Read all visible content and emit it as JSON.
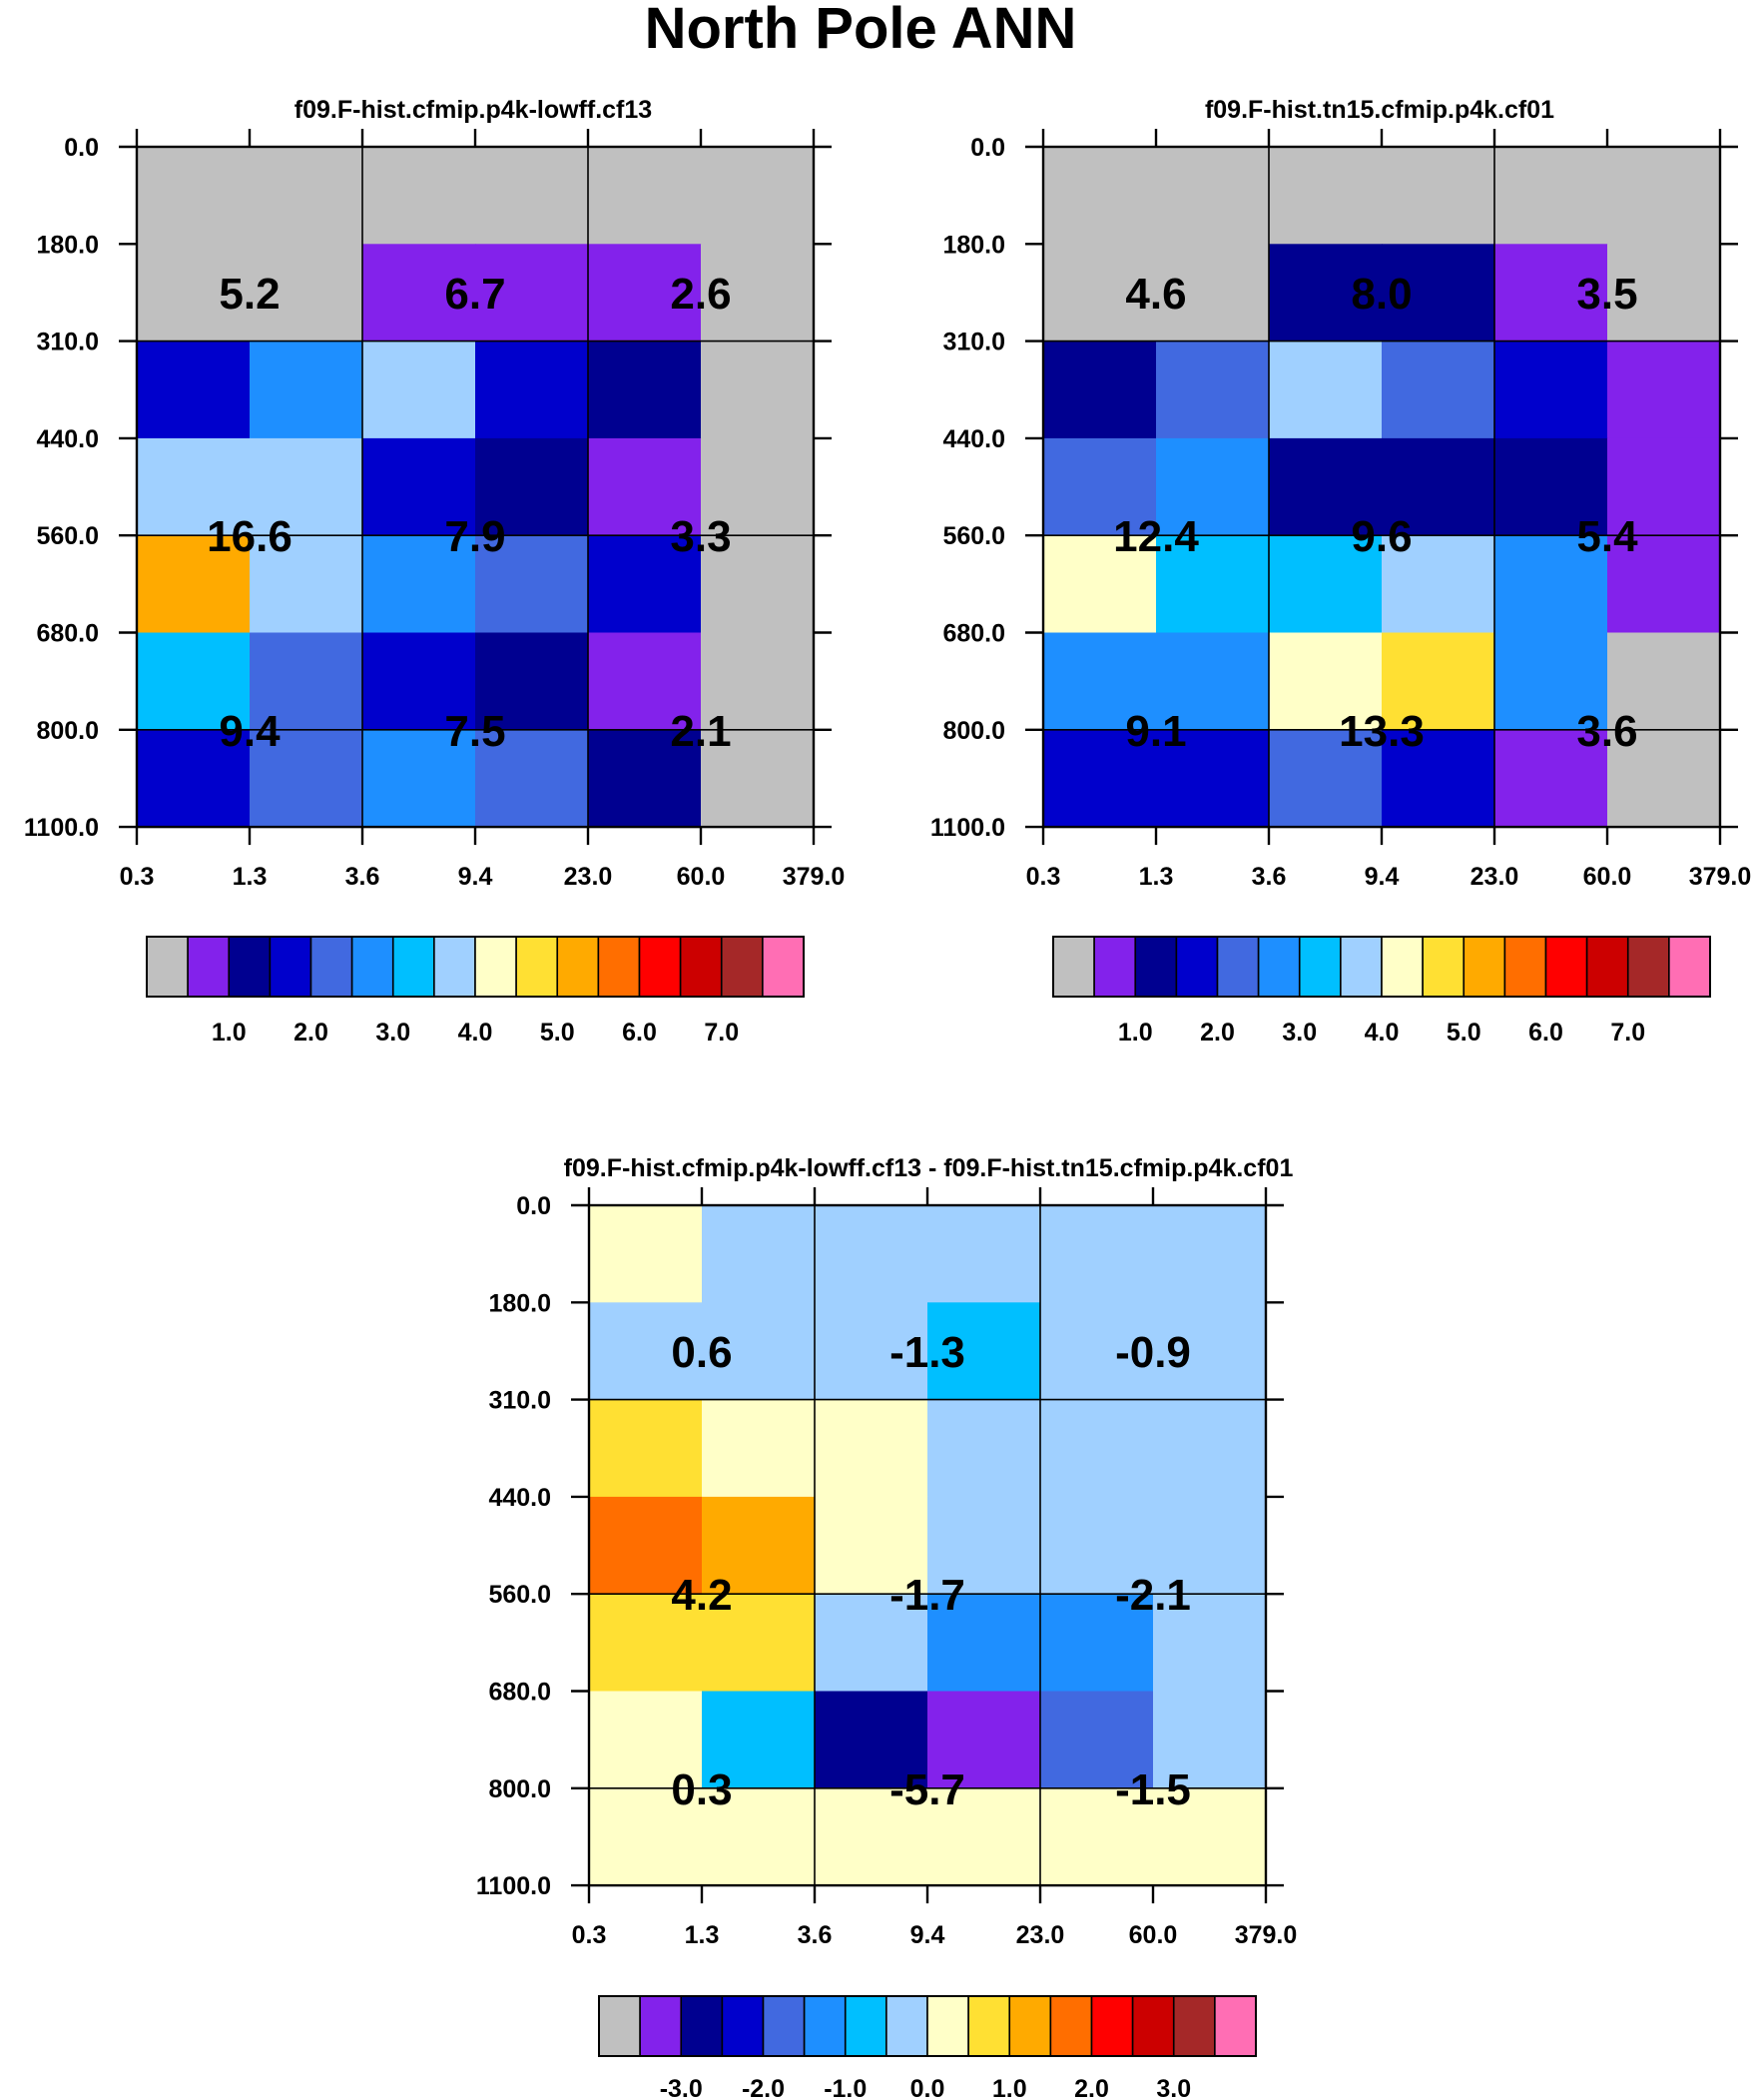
{
  "title": "North Pole ANN",
  "palette": {
    "grey": "#C0C0C0",
    "violet": "#8322EB",
    "navy": "#000090",
    "blue": "#0000CC",
    "royal": "#4169E0",
    "dodger": "#1E8FFF",
    "sky": "#00BFFF",
    "pale": "#A0D0FF",
    "cream": "#FFFFC8",
    "yellow": "#FFE033",
    "amber": "#FFAA00",
    "orange": "#FF6E00",
    "red": "#FF0000",
    "crimson": "#CC0000",
    "brown": "#A52828",
    "pink": "#FF6EB4",
    "frame": "#000000"
  },
  "legend_swatches": [
    "grey",
    "violet",
    "navy",
    "blue",
    "royal",
    "dodger",
    "sky",
    "pale",
    "cream",
    "yellow",
    "amber",
    "orange",
    "red",
    "crimson",
    "brown",
    "pink"
  ],
  "chart_data": [
    {
      "type": "heatmap",
      "title": "f09.F-hist.cfmip.p4k-lowff.cf13",
      "x_ticks": [
        "0.3",
        "1.3",
        "3.6",
        "9.4",
        "23.0",
        "60.0",
        "379.0"
      ],
      "y_ticks": [
        "0.0",
        "180.0",
        "310.0",
        "440.0",
        "560.0",
        "680.0",
        "800.0",
        "1100.0"
      ],
      "xlabel": "",
      "ylabel": "",
      "cells": [
        [
          "grey",
          "grey",
          "grey",
          "grey",
          "grey",
          "grey"
        ],
        [
          "grey",
          "grey",
          "violet",
          "violet",
          "violet",
          "grey"
        ],
        [
          "blue",
          "dodger",
          "pale",
          "blue",
          "navy",
          "grey"
        ],
        [
          "pale",
          "pale",
          "blue",
          "navy",
          "violet",
          "grey"
        ],
        [
          "amber",
          "pale",
          "dodger",
          "royal",
          "blue",
          "grey"
        ],
        [
          "sky",
          "royal",
          "blue",
          "navy",
          "violet",
          "grey"
        ],
        [
          "blue",
          "royal",
          "dodger",
          "royal",
          "navy",
          "grey"
        ]
      ],
      "annotations": [
        {
          "col": 0,
          "row": 0,
          "text": "5.2"
        },
        {
          "col": 1,
          "row": 0,
          "text": "6.7"
        },
        {
          "col": 2,
          "row": 0,
          "text": "2.6"
        },
        {
          "col": 0,
          "row": 1,
          "text": "16.6"
        },
        {
          "col": 1,
          "row": 1,
          "text": "7.9"
        },
        {
          "col": 2,
          "row": 1,
          "text": "3.3"
        },
        {
          "col": 0,
          "row": 2,
          "text": "9.4"
        },
        {
          "col": 1,
          "row": 2,
          "text": "7.5"
        },
        {
          "col": 2,
          "row": 2,
          "text": "2.1"
        }
      ],
      "colorbar": {
        "labels": [
          "1.0",
          "2.0",
          "3.0",
          "4.0",
          "5.0",
          "6.0",
          "7.0"
        ]
      }
    },
    {
      "type": "heatmap",
      "title": "f09.F-hist.tn15.cfmip.p4k.cf01",
      "x_ticks": [
        "0.3",
        "1.3",
        "3.6",
        "9.4",
        "23.0",
        "60.0",
        "379.0"
      ],
      "y_ticks": [
        "0.0",
        "180.0",
        "310.0",
        "440.0",
        "560.0",
        "680.0",
        "800.0",
        "1100.0"
      ],
      "xlabel": "",
      "ylabel": "",
      "cells": [
        [
          "grey",
          "grey",
          "grey",
          "grey",
          "grey",
          "grey"
        ],
        [
          "grey",
          "grey",
          "navy",
          "navy",
          "violet",
          "grey"
        ],
        [
          "navy",
          "royal",
          "pale",
          "royal",
          "blue",
          "violet"
        ],
        [
          "royal",
          "dodger",
          "navy",
          "navy",
          "navy",
          "violet"
        ],
        [
          "cream",
          "sky",
          "sky",
          "pale",
          "dodger",
          "violet"
        ],
        [
          "dodger",
          "dodger",
          "cream",
          "yellow",
          "dodger",
          "grey"
        ],
        [
          "blue",
          "blue",
          "royal",
          "blue",
          "violet",
          "grey"
        ]
      ],
      "annotations": [
        {
          "col": 0,
          "row": 0,
          "text": "4.6"
        },
        {
          "col": 1,
          "row": 0,
          "text": "8.0"
        },
        {
          "col": 2,
          "row": 0,
          "text": "3.5"
        },
        {
          "col": 0,
          "row": 1,
          "text": "12.4"
        },
        {
          "col": 1,
          "row": 1,
          "text": "9.6"
        },
        {
          "col": 2,
          "row": 1,
          "text": "5.4"
        },
        {
          "col": 0,
          "row": 2,
          "text": "9.1"
        },
        {
          "col": 1,
          "row": 2,
          "text": "13.3"
        },
        {
          "col": 2,
          "row": 2,
          "text": "3.6"
        }
      ],
      "colorbar": {
        "labels": [
          "1.0",
          "2.0",
          "3.0",
          "4.0",
          "5.0",
          "6.0",
          "7.0"
        ]
      }
    },
    {
      "type": "heatmap",
      "title": "f09.F-hist.cfmip.p4k-lowff.cf13 - f09.F-hist.tn15.cfmip.p4k.cf01",
      "x_ticks": [
        "0.3",
        "1.3",
        "3.6",
        "9.4",
        "23.0",
        "60.0",
        "379.0"
      ],
      "y_ticks": [
        "0.0",
        "180.0",
        "310.0",
        "440.0",
        "560.0",
        "680.0",
        "800.0",
        "1100.0"
      ],
      "xlabel": "",
      "ylabel": "",
      "cells": [
        [
          "cream",
          "pale",
          "pale",
          "pale",
          "pale",
          "pale"
        ],
        [
          "pale",
          "pale",
          "pale",
          "sky",
          "pale",
          "pale"
        ],
        [
          "yellow",
          "cream",
          "cream",
          "pale",
          "pale",
          "pale"
        ],
        [
          "orange",
          "amber",
          "cream",
          "pale",
          "pale",
          "pale"
        ],
        [
          "yellow",
          "yellow",
          "pale",
          "dodger",
          "dodger",
          "pale"
        ],
        [
          "cream",
          "sky",
          "navy",
          "violet",
          "royal",
          "pale"
        ],
        [
          "cream",
          "cream",
          "cream",
          "cream",
          "cream",
          "cream"
        ]
      ],
      "annotations": [
        {
          "col": 0,
          "row": 0,
          "text": "0.6"
        },
        {
          "col": 1,
          "row": 0,
          "text": "-1.3"
        },
        {
          "col": 2,
          "row": 0,
          "text": "-0.9"
        },
        {
          "col": 0,
          "row": 1,
          "text": "4.2"
        },
        {
          "col": 1,
          "row": 1,
          "text": "-1.7"
        },
        {
          "col": 2,
          "row": 1,
          "text": "-2.1"
        },
        {
          "col": 0,
          "row": 2,
          "text": "0.3"
        },
        {
          "col": 1,
          "row": 2,
          "text": "-5.7"
        },
        {
          "col": 2,
          "row": 2,
          "text": "-1.5"
        }
      ],
      "colorbar": {
        "labels": [
          "-3.0",
          "-2.0",
          "-1.0",
          "0.0",
          "1.0",
          "2.0",
          "3.0"
        ]
      }
    }
  ]
}
